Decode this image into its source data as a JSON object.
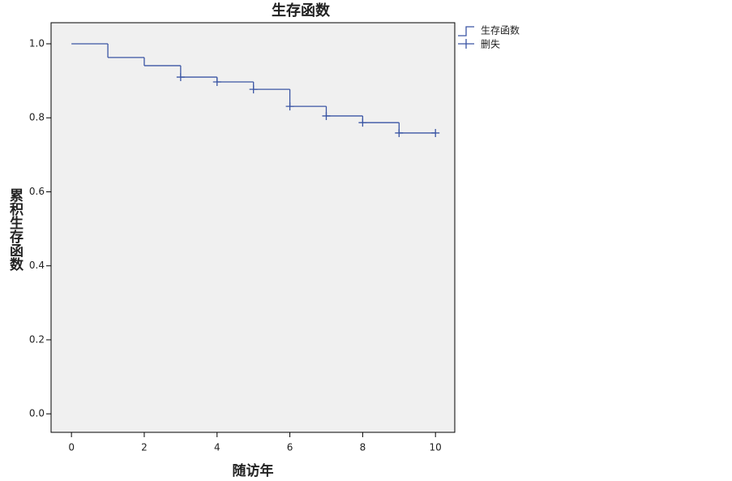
{
  "chart_data": {
    "type": "step",
    "title": "生存函数",
    "x_label": "随访年",
    "y_label": "累积生存函数",
    "series": [
      {
        "name": "生存函数",
        "color": "#3a55a4",
        "x": [
          0,
          1,
          2,
          3,
          4,
          5,
          6,
          7,
          8,
          9,
          10
        ],
        "values": [
          1.0,
          0.963,
          0.941,
          0.91,
          0.897,
          0.877,
          0.831,
          0.805,
          0.787,
          0.759,
          0.759
        ]
      },
      {
        "name": "删失",
        "color": "#3a55a4",
        "x": [
          3,
          4,
          5,
          6,
          7,
          8,
          9,
          10
        ],
        "values": [
          0.91,
          0.897,
          0.877,
          0.831,
          0.805,
          0.787,
          0.759,
          0.759
        ]
      }
    ],
    "xlim": [
      -0.56,
      10.53
    ],
    "ylim": [
      -0.05,
      1.057
    ],
    "xticks": [
      0,
      2,
      4,
      6,
      8,
      10
    ],
    "yticks": [
      {
        "value": 0,
        "label": "0.0"
      },
      {
        "value": 0.2,
        "label": "0.2"
      },
      {
        "value": 0.4,
        "label": "0.4"
      },
      {
        "value": 0.6,
        "label": "0.6"
      },
      {
        "value": 0.8,
        "label": "0.8"
      },
      {
        "value": 1,
        "label": "1.0"
      }
    ],
    "legend": "right",
    "background": "#f0f0f0"
  }
}
